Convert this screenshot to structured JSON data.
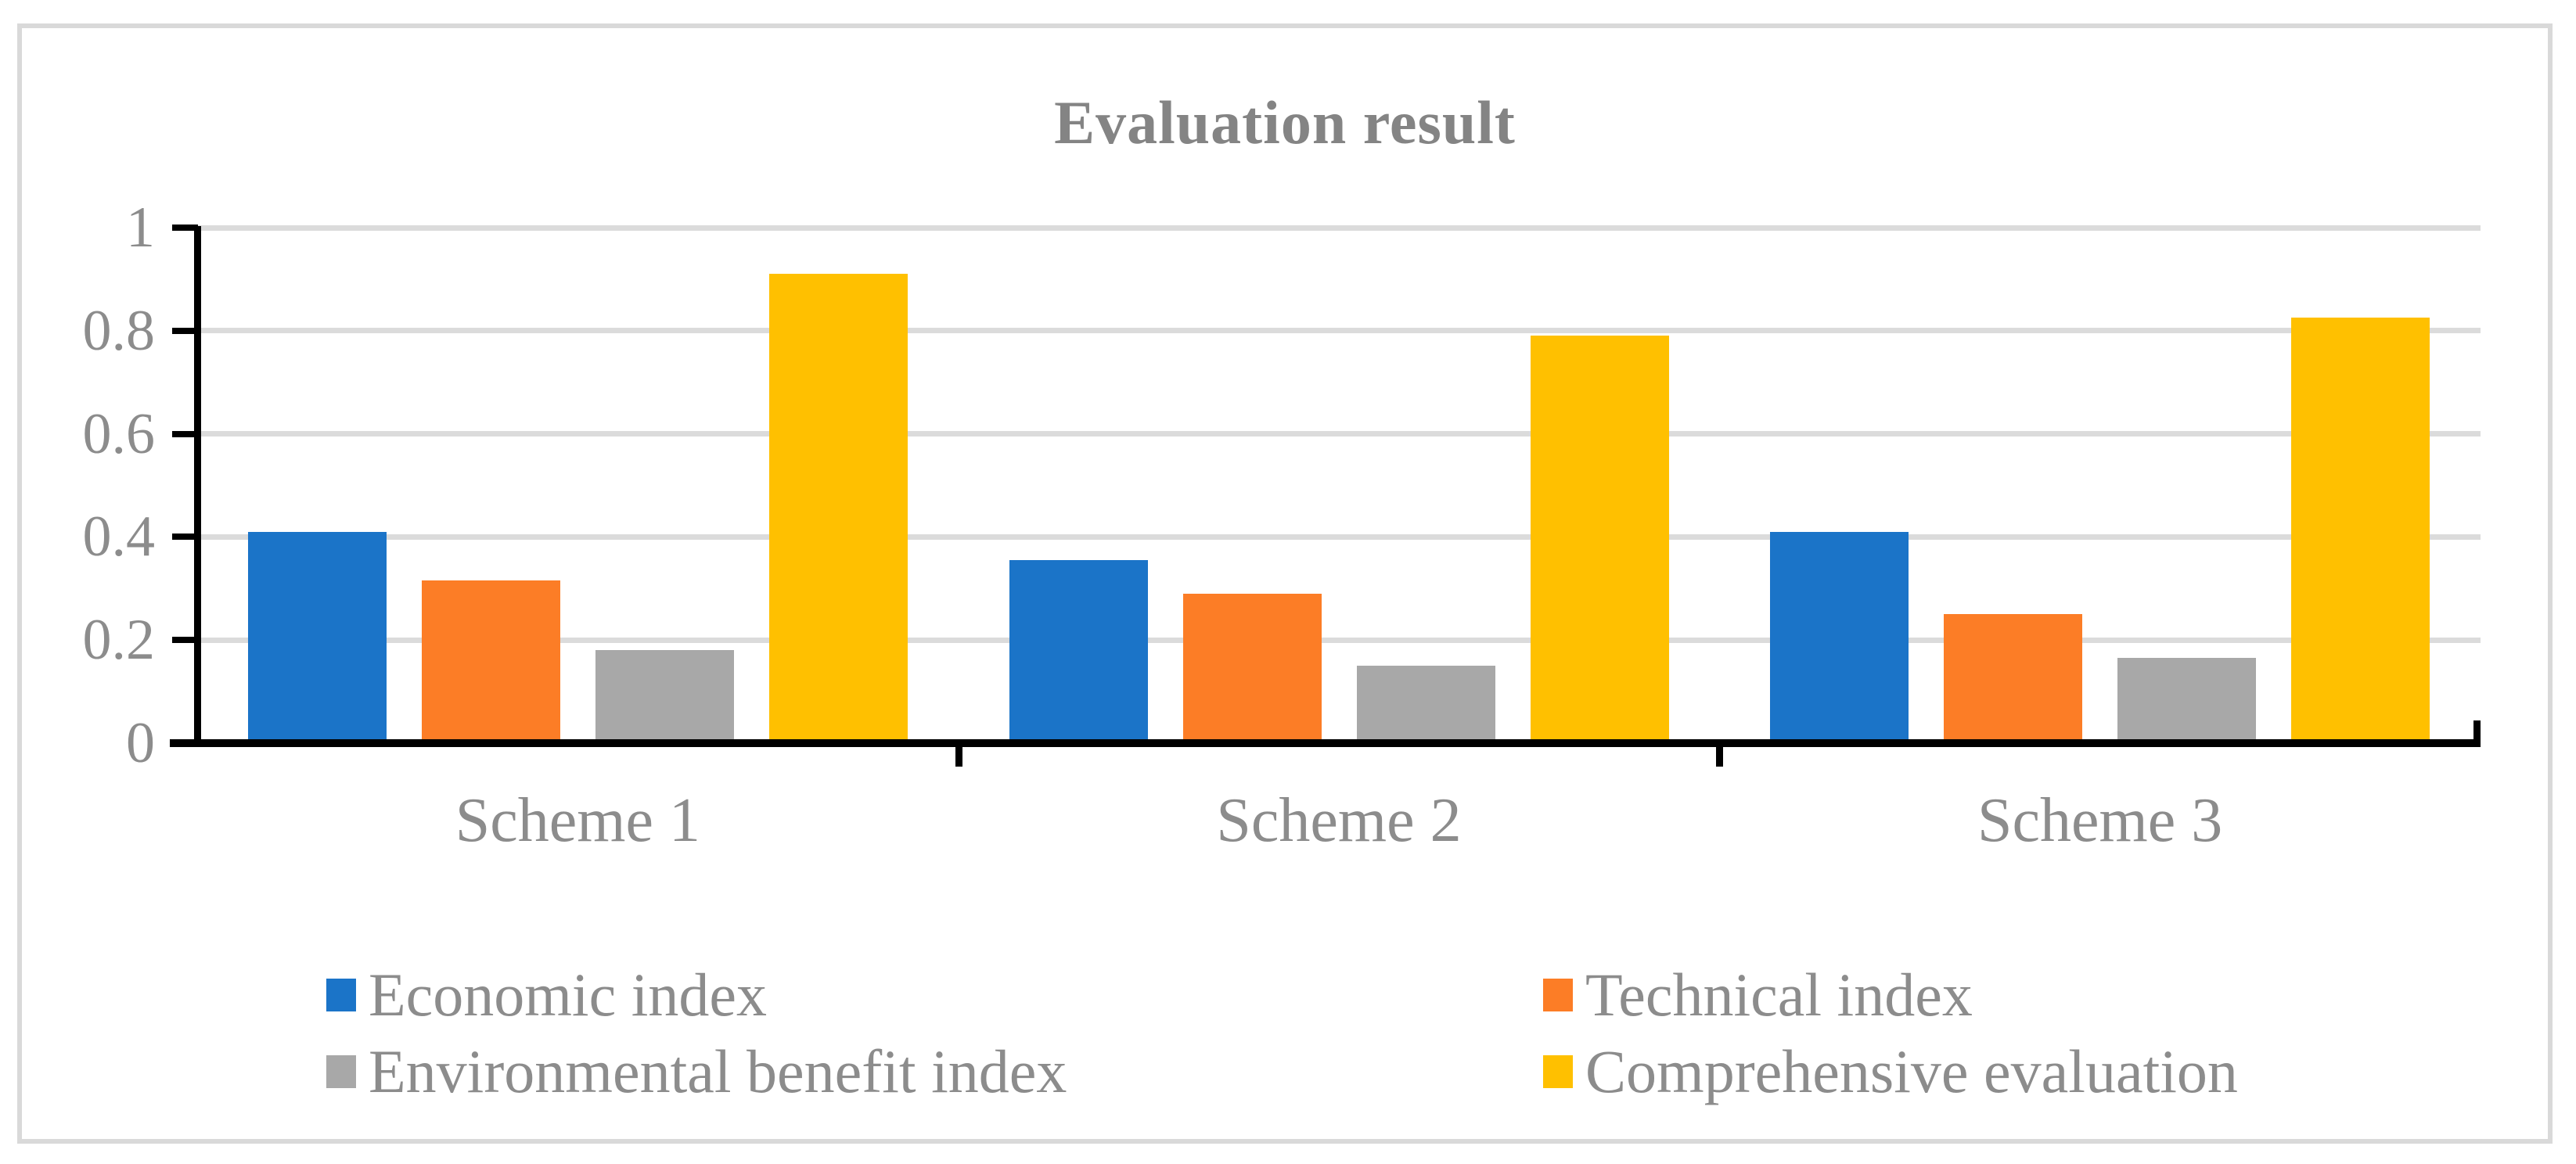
{
  "colors": {
    "gridline": "#DBDBDB",
    "axis": "#000000",
    "text": "#8C8C8C",
    "title": "#848484",
    "frame_border": "#D9D9D9",
    "background": "#FFFFFF"
  },
  "chart_data": {
    "type": "bar",
    "title": "Evaluation result",
    "categories": [
      "Scheme 1",
      "Scheme 2",
      "Scheme 3"
    ],
    "series": [
      {
        "name": "Economic index",
        "color": "#1B74C8",
        "values": [
          0.41,
          0.355,
          0.41
        ]
      },
      {
        "name": "Technical index",
        "color": "#FC7D26",
        "values": [
          0.315,
          0.29,
          0.25
        ]
      },
      {
        "name": "Environmental benefit index",
        "color": "#A8A8A8",
        "values": [
          0.18,
          0.15,
          0.165
        ]
      },
      {
        "name": "Comprehensive evaluation",
        "color": "#FFC000",
        "values": [
          0.91,
          0.79,
          0.825
        ]
      }
    ],
    "xlabel": "",
    "ylabel": "",
    "ylim": [
      0,
      1
    ],
    "yticks": [
      1,
      0.8,
      0.6,
      0.4,
      0.2,
      0
    ],
    "grid": true,
    "legend_position": "bottom"
  }
}
